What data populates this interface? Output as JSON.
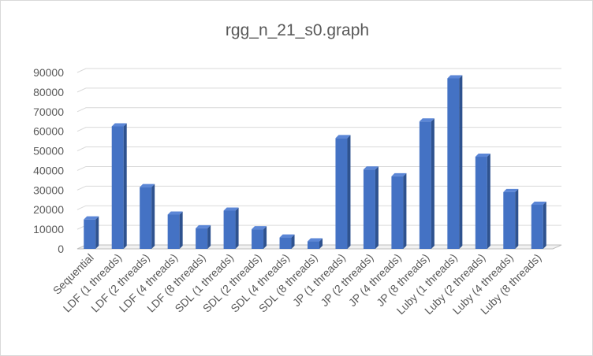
{
  "chart_data": {
    "type": "bar",
    "title": "rgg_n_21_s0.graph",
    "xlabel": "",
    "ylabel": "",
    "ylim": [
      0,
      90000
    ],
    "yticks": [
      0,
      10000,
      20000,
      30000,
      40000,
      50000,
      60000,
      70000,
      80000,
      90000
    ],
    "grid": true,
    "legend": "none",
    "categories": [
      "Sequential",
      "LDF (1 threads)",
      "LDF (2 threads)",
      "LDF (4 threads)",
      "LDF (8 threads)",
      "SDL (1 threads)",
      "SDL (2 threads)",
      "SDL (4 threads)",
      "SDL (8 threads)",
      "JP (1 threads)",
      "JP (2 threads)",
      "JP (4 threads)",
      "JP (8 threads)",
      "Luby (1 threads)",
      "Luby (2 threads)",
      "Luby (4 threads)",
      "Luby (8 threads)"
    ],
    "values": [
      15000,
      62500,
      31500,
      17500,
      10500,
      19500,
      10000,
      5800,
      3800,
      56500,
      40500,
      37000,
      65000,
      87000,
      47000,
      29000,
      22500
    ],
    "colors": {
      "front": "#4472c4",
      "side": "#2e528f",
      "top": "#5b86d6",
      "grid": "#d9d9d9",
      "floor": "#bfbfbf"
    }
  }
}
